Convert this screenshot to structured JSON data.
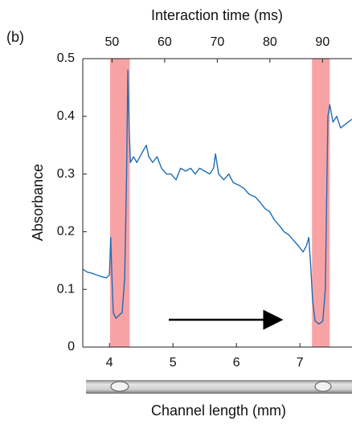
{
  "chart_data": {
    "type": "line",
    "panel_label": "(b)",
    "xlabel": "Channel length (mm)",
    "x2label": "Interaction time (ms)",
    "ylabel": "Absorbance",
    "xlim": [
      3.58,
      7.82
    ],
    "xticks": [
      4,
      5,
      6,
      7
    ],
    "x2lim": [
      44.44,
      95.6
    ],
    "x2ticks": [
      50,
      60,
      70,
      80,
      90
    ],
    "ylim": [
      0,
      0.5
    ],
    "yticks": [
      0,
      0.1,
      0.2,
      0.3,
      0.4,
      0.5
    ],
    "shaded_regions": [
      [
        4.01,
        4.32
      ],
      [
        7.19,
        7.47
      ]
    ],
    "shade_color": "#f7a3a6",
    "series": [
      {
        "color": "#1f6db3",
        "x": [
          3.58,
          3.65,
          3.72,
          3.8,
          3.88,
          3.95,
          4.0,
          4.02,
          4.04,
          4.06,
          4.1,
          4.15,
          4.2,
          4.24,
          4.27,
          4.29,
          4.31,
          4.33,
          4.38,
          4.43,
          4.48,
          4.53,
          4.58,
          4.62,
          4.68,
          4.75,
          4.82,
          4.9,
          4.97,
          5.05,
          5.12,
          5.2,
          5.28,
          5.35,
          5.42,
          5.5,
          5.58,
          5.64,
          5.67,
          5.72,
          5.8,
          5.88,
          5.95,
          6.05,
          6.12,
          6.2,
          6.3,
          6.38,
          6.45,
          6.52,
          6.6,
          6.68,
          6.75,
          6.82,
          6.9,
          6.98,
          7.05,
          7.1,
          7.14,
          7.17,
          7.2,
          7.24,
          7.3,
          7.36,
          7.4,
          7.42,
          7.44,
          7.47,
          7.52,
          7.58,
          7.64,
          7.7,
          7.76,
          7.82
        ],
        "values": [
          0.135,
          0.13,
          0.128,
          0.125,
          0.122,
          0.12,
          0.125,
          0.19,
          0.12,
          0.06,
          0.05,
          0.055,
          0.06,
          0.12,
          0.3,
          0.48,
          0.38,
          0.32,
          0.33,
          0.32,
          0.33,
          0.34,
          0.35,
          0.33,
          0.32,
          0.33,
          0.31,
          0.3,
          0.3,
          0.29,
          0.31,
          0.305,
          0.31,
          0.3,
          0.31,
          0.305,
          0.3,
          0.31,
          0.335,
          0.3,
          0.29,
          0.3,
          0.285,
          0.28,
          0.275,
          0.265,
          0.26,
          0.25,
          0.24,
          0.235,
          0.22,
          0.21,
          0.2,
          0.195,
          0.185,
          0.175,
          0.165,
          0.175,
          0.19,
          0.14,
          0.08,
          0.045,
          0.04,
          0.045,
          0.1,
          0.25,
          0.4,
          0.42,
          0.39,
          0.4,
          0.38,
          0.385,
          0.39,
          0.395
        ]
      }
    ]
  }
}
